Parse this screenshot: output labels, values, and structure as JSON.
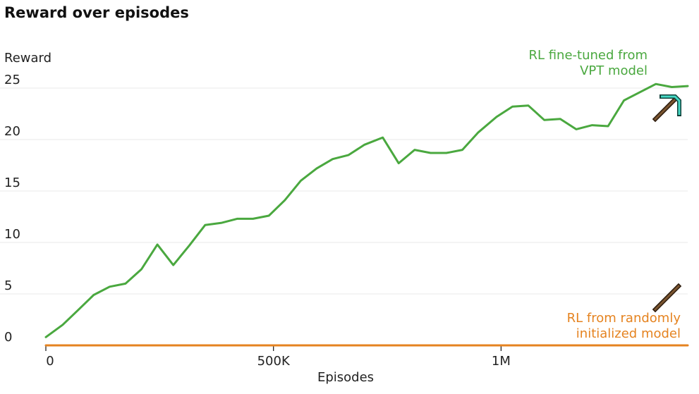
{
  "chart_data": {
    "type": "line",
    "title": "Reward over episodes",
    "xlabel": "Episodes",
    "ylabel": "Reward",
    "xlim": [
      0,
      1410000
    ],
    "ylim": [
      0,
      25
    ],
    "x_ticks": [
      {
        "value": 0,
        "label": "0"
      },
      {
        "value": 500000,
        "label": "500K"
      },
      {
        "value": 1000000,
        "label": "1M"
      }
    ],
    "y_ticks": [
      {
        "value": 0,
        "label": "0"
      },
      {
        "value": 5,
        "label": "5"
      },
      {
        "value": 10,
        "label": "10"
      },
      {
        "value": 15,
        "label": "15"
      },
      {
        "value": 20,
        "label": "20"
      },
      {
        "value": 25,
        "label": "25"
      }
    ],
    "grid": true,
    "series": [
      {
        "name": "RL fine-tuned from VPT model",
        "label_lines": [
          "RL fine-tuned from",
          "VPT model"
        ],
        "color": "#4aa83f",
        "icon": "diamond-pickaxe-icon",
        "x": [
          0,
          37000,
          70000,
          105000,
          140000,
          175000,
          210000,
          245000,
          280000,
          315000,
          350000,
          385000,
          420000,
          455000,
          490000,
          525000,
          560000,
          595000,
          630000,
          665000,
          700000,
          740000,
          775000,
          810000,
          845000,
          880000,
          915000,
          950000,
          990000,
          1025000,
          1060000,
          1095000,
          1130000,
          1165000,
          1200000,
          1235000,
          1270000,
          1305000,
          1340000,
          1375000,
          1410000
        ],
        "y": [
          0.8,
          2.0,
          3.4,
          4.9,
          5.7,
          6.0,
          7.4,
          9.8,
          7.8,
          9.7,
          11.7,
          11.9,
          12.3,
          12.3,
          12.6,
          14.1,
          16.0,
          17.2,
          18.1,
          18.5,
          19.5,
          20.2,
          17.7,
          19.0,
          18.7,
          18.7,
          19.0,
          20.7,
          22.2,
          23.2,
          23.3,
          21.9,
          22.0,
          21.0,
          21.4,
          21.3,
          23.8,
          24.6,
          25.4,
          25.1,
          25.2
        ]
      },
      {
        "name": "RL from randomly initialized model",
        "label_lines": [
          "RL from randomly",
          "initialized model"
        ],
        "color": "#e58320",
        "icon": "wooden-pickaxe-icon",
        "x": [
          0,
          1410000
        ],
        "y": [
          0,
          0
        ]
      }
    ]
  }
}
